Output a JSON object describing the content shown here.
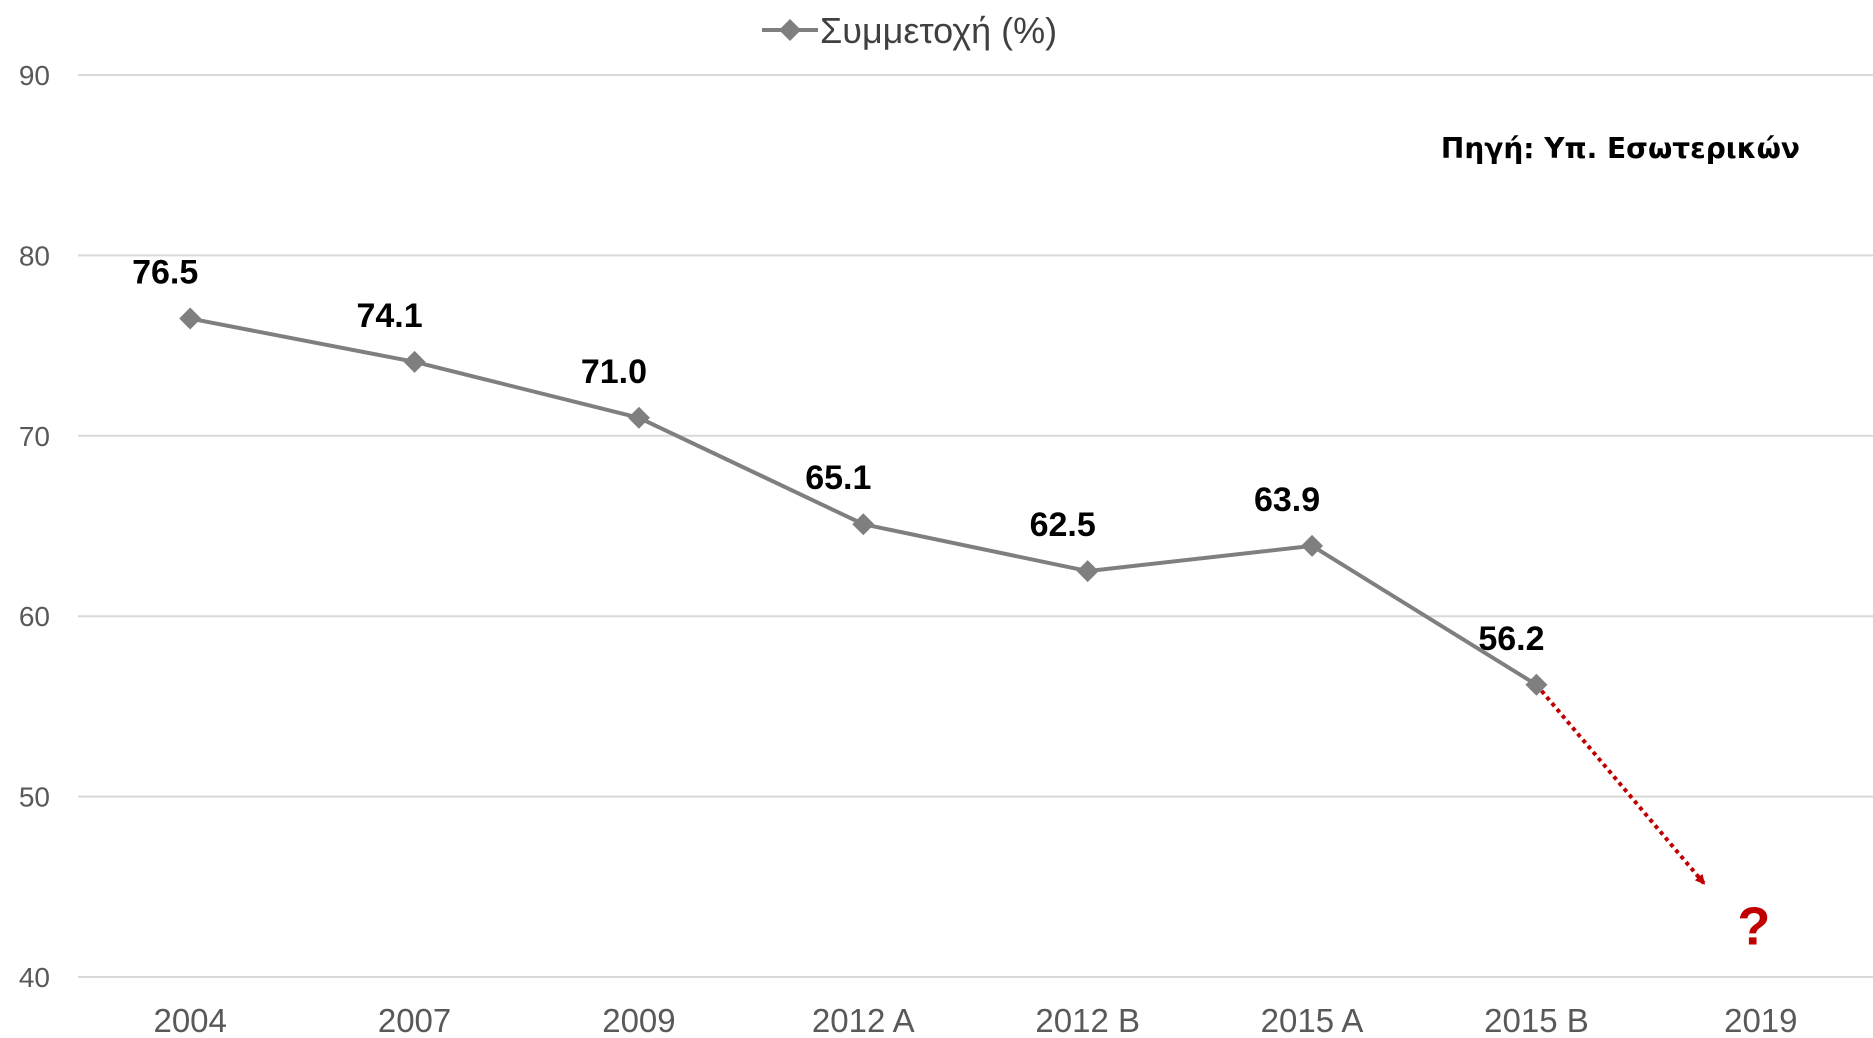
{
  "chart_data": {
    "type": "line",
    "categories": [
      "2004",
      "2007",
      "2009",
      "2012 Α",
      "2012 Β",
      "2015 Α",
      "2015 Β",
      "2019"
    ],
    "series": [
      {
        "name": "Συμμετοχή (%)",
        "values": [
          76.5,
          74.1,
          71.0,
          65.1,
          62.5,
          63.9,
          56.2,
          null
        ],
        "labels": [
          "76.5",
          "74.1",
          "71.0",
          "65.1",
          "62.5",
          "63.9",
          "56.2",
          null
        ],
        "color": "#7f7f7f",
        "marker": "diamond"
      }
    ],
    "projection": {
      "from_category": "2015 Β",
      "to_category": "2019",
      "style": "dotted-arrow",
      "color": "#c00000",
      "label": "?"
    },
    "ylim": [
      40,
      90
    ],
    "yticks": [
      "90",
      "80",
      "70",
      "60",
      "50",
      "40"
    ],
    "grid": true,
    "legend": {
      "position": "top-center"
    },
    "annotation": "Πηγή: Υπ. Εσωτερικών",
    "title": "",
    "xlabel": "",
    "ylabel": ""
  }
}
